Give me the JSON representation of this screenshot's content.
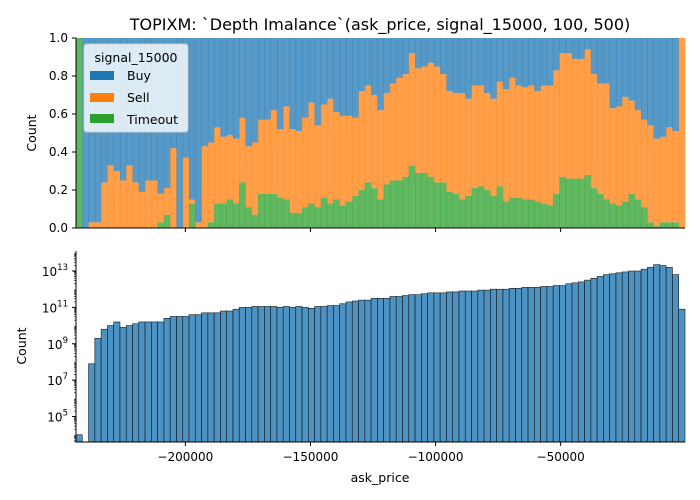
{
  "chart_data": [
    {
      "type": "bar",
      "stacked": true,
      "title": "TOPIXM: `Depth Imalance`(ask_price, signal_15000, 100, 500)",
      "ylabel": "Count",
      "ylim": [
        0,
        1.0
      ],
      "y_ticks": [
        "0.0",
        "0.2",
        "0.4",
        "0.6",
        "0.8",
        "1.0"
      ],
      "x_range": [
        -243700,
        -300
      ],
      "legend": {
        "title": "signal_15000",
        "placement": "top-left",
        "entries": [
          "Buy",
          "Sell",
          "Timeout"
        ]
      },
      "series": [
        {
          "name": "Sell",
          "color": "#ff7f0e",
          "values": [
            0.0,
            0.0,
            0.03,
            0.03,
            0.24,
            0.33,
            0.3,
            0.25,
            0.33,
            0.24,
            0.19,
            0.25,
            0.25,
            0.15,
            0.14,
            0.42,
            0.0,
            0.37,
            0.02,
            0.03,
            0.43,
            0.42,
            0.4,
            0.35,
            0.34,
            0.34,
            0.34,
            0.32,
            0.38,
            0.39,
            0.39,
            0.44,
            0.36,
            0.49,
            0.44,
            0.43,
            0.47,
            0.53,
            0.43,
            0.49,
            0.55,
            0.46,
            0.47,
            0.45,
            0.41,
            0.52,
            0.51,
            0.49,
            0.47,
            0.48,
            0.51,
            0.54,
            0.54,
            0.59,
            0.55,
            0.56,
            0.6,
            0.61,
            0.57,
            0.53,
            0.53,
            0.56,
            0.51,
            0.54,
            0.53,
            0.51,
            0.51,
            0.55,
            0.59,
            0.63,
            0.59,
            0.59,
            0.6,
            0.58,
            0.62,
            0.63,
            0.65,
            0.65,
            0.66,
            0.63,
            0.63,
            0.66,
            0.6,
            0.58,
            0.61,
            0.5,
            0.52,
            0.55,
            0.49,
            0.47,
            0.46,
            0.51,
            0.46,
            0.45,
            0.5,
            0.48,
            1.0
          ]
        },
        {
          "name": "Timeout",
          "color": "#2ca02c",
          "values": [
            1.0,
            0.0,
            0.0,
            0.0,
            0.0,
            0.0,
            0.0,
            0.0,
            0.0,
            0.0,
            0.0,
            0.0,
            0.0,
            0.03,
            0.07,
            0.0,
            0.0,
            0.0,
            0.13,
            0.0,
            0.0,
            0.03,
            0.13,
            0.13,
            0.15,
            0.13,
            0.24,
            0.11,
            0.07,
            0.18,
            0.18,
            0.18,
            0.16,
            0.15,
            0.08,
            0.08,
            0.11,
            0.13,
            0.11,
            0.16,
            0.13,
            0.15,
            0.12,
            0.14,
            0.17,
            0.2,
            0.24,
            0.21,
            0.15,
            0.23,
            0.25,
            0.25,
            0.27,
            0.33,
            0.29,
            0.29,
            0.27,
            0.24,
            0.24,
            0.19,
            0.18,
            0.15,
            0.17,
            0.21,
            0.22,
            0.2,
            0.17,
            0.22,
            0.14,
            0.16,
            0.16,
            0.15,
            0.15,
            0.14,
            0.13,
            0.12,
            0.18,
            0.27,
            0.26,
            0.26,
            0.26,
            0.28,
            0.21,
            0.18,
            0.15,
            0.13,
            0.12,
            0.14,
            0.18,
            0.15,
            0.11,
            0.03,
            0.01,
            0.03,
            0.03,
            0.03,
            0.0
          ]
        },
        {
          "name": "Buy",
          "color": "#1f77b4",
          "values_note_key": "remainder"
        }
      ]
    },
    {
      "type": "bar",
      "ylabel": "Count",
      "xlabel": "ask_price",
      "y_scale": "log",
      "ylim_exp": [
        3.6,
        14.1
      ],
      "y_ticks": [
        {
          "base": "10",
          "exp": "5",
          "value": 5
        },
        {
          "base": "10",
          "exp": "7",
          "value": 7
        },
        {
          "base": "10",
          "exp": "9",
          "value": 9
        },
        {
          "base": "10",
          "exp": "11",
          "value": 11
        },
        {
          "base": "10",
          "exp": "13",
          "value": 13
        }
      ],
      "x_ticks": [
        "−200000",
        "−150000",
        "−100000",
        "−50000"
      ],
      "x_tick_values": [
        -200000,
        -150000,
        -100000,
        -50000
      ],
      "x_range": [
        -243700,
        -300
      ],
      "series": [
        {
          "name": "",
          "color": "#1f77b4",
          "log10_values": [
            4.0,
            0.0,
            7.9,
            9.3,
            9.8,
            10.0,
            10.2,
            9.9,
            10.0,
            10.1,
            10.2,
            10.2,
            10.2,
            10.2,
            10.4,
            10.5,
            10.5,
            10.5,
            10.6,
            10.6,
            10.7,
            10.7,
            10.7,
            10.8,
            10.8,
            10.9,
            11.0,
            11.0,
            11.05,
            11.05,
            11.05,
            11.05,
            11.0,
            11.05,
            11.0,
            11.05,
            11.0,
            10.95,
            11.05,
            11.05,
            11.1,
            11.1,
            11.2,
            11.3,
            11.35,
            11.4,
            11.4,
            11.5,
            11.5,
            11.5,
            11.6,
            11.6,
            11.65,
            11.7,
            11.7,
            11.75,
            11.8,
            11.8,
            11.8,
            11.85,
            11.85,
            11.9,
            11.9,
            11.9,
            11.95,
            11.95,
            12.0,
            12.0,
            12.0,
            12.05,
            12.05,
            12.1,
            12.1,
            12.1,
            12.15,
            12.15,
            12.2,
            12.2,
            12.3,
            12.35,
            12.4,
            12.5,
            12.6,
            12.7,
            12.8,
            12.85,
            12.9,
            12.95,
            13.0,
            13.0,
            13.1,
            13.2,
            13.35,
            13.3,
            13.2,
            12.8,
            10.9
          ]
        }
      ]
    }
  ]
}
